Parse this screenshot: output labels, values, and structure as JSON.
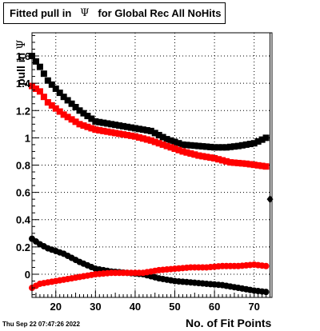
{
  "title_prefix": "Fitted pull in",
  "title_symbol": "Ψ",
  "title_suffix": "for Global Rec All NoHits",
  "timestamp": "Thu Sep 22 07:47:26 2022",
  "chart_data": {
    "type": "scatter",
    "xlabel": "No. of Fit Points",
    "ylabel_prefix": "pull in",
    "ylabel_symbol": "Ψ",
    "xlim": [
      14,
      74.5
    ],
    "ylim": [
      -0.17,
      1.77
    ],
    "xticks": [
      20,
      30,
      40,
      50,
      60,
      70
    ],
    "yticks": [
      0,
      0.2,
      0.4,
      0.6,
      0.8,
      1,
      1.2,
      1.4,
      1.6
    ],
    "ytick_labels": [
      "0",
      "0.2",
      "0.4",
      "0.6",
      "0.8",
      "1",
      "1.2",
      "1.4",
      "1.6"
    ],
    "grid": true,
    "extra_point": {
      "x": 74,
      "y": 0.55
    },
    "series": [
      {
        "marker": "square",
        "color": "#000000",
        "knots": [
          [
            14,
            1.6
          ],
          [
            16,
            1.52
          ],
          [
            18,
            1.42
          ],
          [
            22,
            1.3
          ],
          [
            26,
            1.2
          ],
          [
            30,
            1.12
          ],
          [
            34,
            1.1
          ],
          [
            40,
            1.07
          ],
          [
            44,
            1.05
          ],
          [
            48,
            0.99
          ],
          [
            52,
            0.95
          ],
          [
            56,
            0.94
          ],
          [
            60,
            0.93
          ],
          [
            63,
            0.93
          ],
          [
            66,
            0.94
          ],
          [
            70,
            0.96
          ],
          [
            73,
            1.0
          ]
        ]
      },
      {
        "marker": "square",
        "color": "#ff0000",
        "knots": [
          [
            14,
            1.38
          ],
          [
            16,
            1.34
          ],
          [
            18,
            1.26
          ],
          [
            22,
            1.17
          ],
          [
            26,
            1.1
          ],
          [
            30,
            1.06
          ],
          [
            34,
            1.04
          ],
          [
            40,
            1.01
          ],
          [
            44,
            0.98
          ],
          [
            48,
            0.94
          ],
          [
            52,
            0.9
          ],
          [
            56,
            0.87
          ],
          [
            60,
            0.85
          ],
          [
            64,
            0.82
          ],
          [
            68,
            0.81
          ],
          [
            73,
            0.79
          ]
        ]
      },
      {
        "marker": "circle",
        "color": "#000000",
        "knots": [
          [
            14,
            0.26
          ],
          [
            16,
            0.22
          ],
          [
            18,
            0.19
          ],
          [
            22,
            0.15
          ],
          [
            26,
            0.09
          ],
          [
            30,
            0.04
          ],
          [
            34,
            0.02
          ],
          [
            38,
            0.01
          ],
          [
            42,
            0.0
          ],
          [
            46,
            -0.03
          ],
          [
            50,
            -0.05
          ],
          [
            54,
            -0.06
          ],
          [
            58,
            -0.07
          ],
          [
            62,
            -0.08
          ],
          [
            66,
            -0.1
          ],
          [
            70,
            -0.12
          ],
          [
            73,
            -0.13
          ]
        ]
      },
      {
        "marker": "circle",
        "color": "#ff0000",
        "knots": [
          [
            14,
            -0.1
          ],
          [
            16,
            -0.07
          ],
          [
            18,
            -0.06
          ],
          [
            22,
            -0.04
          ],
          [
            26,
            -0.02
          ],
          [
            30,
            0.0
          ],
          [
            34,
            0.01
          ],
          [
            38,
            0.01
          ],
          [
            42,
            0.01
          ],
          [
            46,
            0.03
          ],
          [
            50,
            0.04
          ],
          [
            54,
            0.05
          ],
          [
            58,
            0.05
          ],
          [
            62,
            0.06
          ],
          [
            66,
            0.06
          ],
          [
            70,
            0.07
          ],
          [
            73,
            0.06
          ]
        ]
      }
    ]
  }
}
